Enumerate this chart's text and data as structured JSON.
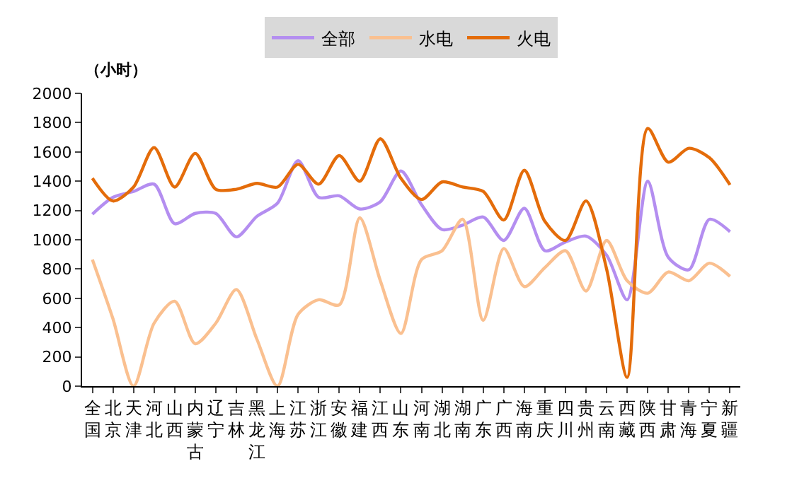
{
  "chart_data": {
    "type": "line",
    "ylabel": "（小时）",
    "categories": [
      "全国",
      "北京",
      "天津",
      "河北",
      "山西",
      "内蒙古",
      "辽宁",
      "吉林",
      "黑龙江",
      "上海",
      "江苏",
      "浙江",
      "安徽",
      "福建",
      "江西",
      "山东",
      "河南",
      "湖北",
      "湖南",
      "广东",
      "广西",
      "海南",
      "重庆",
      "四川",
      "贵州",
      "云南",
      "西藏",
      "陕西",
      "甘肃",
      "青海",
      "宁夏",
      "新疆"
    ],
    "series": [
      {
        "name": "全部",
        "color": "#b48ef0",
        "values": [
          1175,
          1290,
          1330,
          1380,
          1110,
          1180,
          1180,
          1020,
          1160,
          1250,
          1540,
          1290,
          1300,
          1210,
          1260,
          1470,
          1240,
          1070,
          1100,
          1155,
          995,
          1215,
          925,
          985,
          1025,
          895,
          590,
          1400,
          880,
          795,
          1140,
          1055
        ]
      },
      {
        "name": "水电",
        "color": "#fac090",
        "values": [
          865,
          460,
          0,
          430,
          580,
          290,
          430,
          660,
          320,
          0,
          490,
          590,
          555,
          1150,
          720,
          360,
          865,
          925,
          1140,
          450,
          940,
          680,
          810,
          925,
          650,
          995,
          720,
          635,
          780,
          720,
          840,
          750
        ]
      },
      {
        "name": "火电",
        "color": "#e46c0a",
        "values": [
          1420,
          1265,
          1360,
          1630,
          1360,
          1590,
          1345,
          1345,
          1385,
          1360,
          1515,
          1380,
          1575,
          1400,
          1690,
          1420,
          1275,
          1395,
          1360,
          1330,
          1135,
          1475,
          1125,
          995,
          1265,
          800,
          60,
          1760,
          1530,
          1625,
          1560,
          1375
        ]
      }
    ],
    "ylim": [
      0,
      2000
    ],
    "yticks": [
      0,
      200,
      400,
      600,
      800,
      1000,
      1200,
      1400,
      1600,
      1800,
      2000
    ],
    "grid": false,
    "legend": "top",
    "line_style": "solid",
    "marker": "none"
  }
}
